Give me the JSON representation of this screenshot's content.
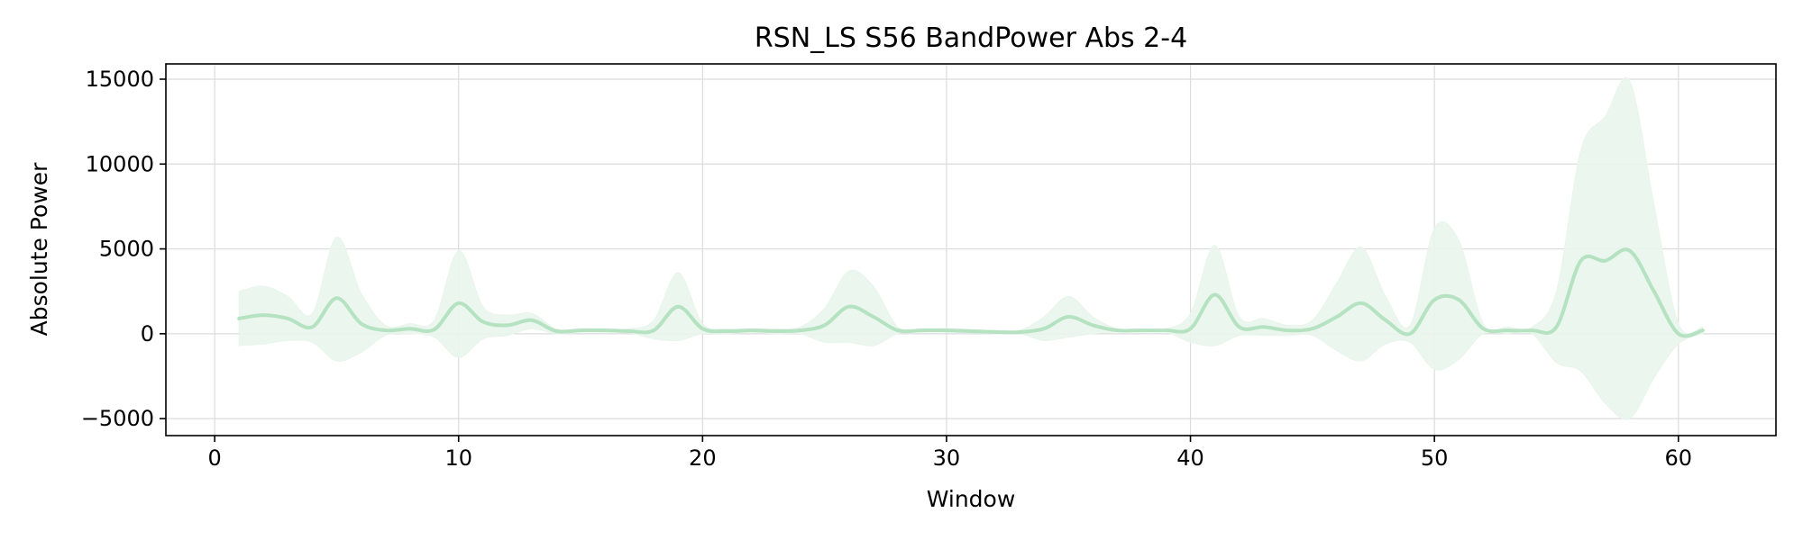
{
  "chart_data": {
    "type": "line",
    "title": "RSN_LS S56 BandPower Abs 2-4",
    "xlabel": "Window",
    "ylabel": "Absolute Power",
    "xlim": [
      -2,
      64
    ],
    "ylim": [
      -6000,
      15900
    ],
    "xticks": [
      0,
      10,
      20,
      30,
      40,
      50,
      60
    ],
    "xtick_labels": [
      "0",
      "10",
      "20",
      "30",
      "40",
      "50",
      "60"
    ],
    "yticks": [
      -5000,
      0,
      5000,
      10000,
      15000
    ],
    "ytick_labels": [
      "−5000",
      "0",
      "5000",
      "10000",
      "15000"
    ],
    "grid": true,
    "colors": {
      "line": "#b5e2c1",
      "band": "#e9f5ec"
    },
    "series": [
      {
        "x": [
          1,
          2,
          3,
          4,
          5,
          6,
          7,
          8,
          9,
          10,
          11,
          12,
          13,
          14,
          15,
          16,
          17,
          18,
          19,
          20,
          21,
          22,
          23,
          24,
          25,
          26,
          27,
          28,
          29,
          30,
          31,
          32,
          33,
          34,
          35,
          36,
          37,
          38,
          39,
          40,
          41,
          42,
          43,
          44,
          45,
          46,
          47,
          48,
          49,
          50,
          51,
          52,
          53,
          54,
          55,
          56,
          57,
          58,
          59,
          60,
          61
        ],
        "mean": [
          900,
          1100,
          900,
          400,
          2100,
          600,
          200,
          300,
          250,
          1800,
          700,
          500,
          800,
          150,
          200,
          200,
          150,
          200,
          1600,
          300,
          150,
          200,
          150,
          200,
          500,
          1600,
          1000,
          200,
          200,
          200,
          150,
          100,
          100,
          300,
          1000,
          500,
          200,
          200,
          200,
          300,
          2300,
          400,
          400,
          200,
          300,
          1000,
          1800,
          800,
          0,
          2000,
          2000,
          300,
          200,
          200,
          400,
          4300,
          4300,
          4900,
          2500,
          0,
          200
        ],
        "upper": [
          2500,
          2800,
          2200,
          1200,
          5700,
          2400,
          500,
          600,
          800,
          4900,
          1600,
          1100,
          1200,
          300,
          300,
          300,
          300,
          800,
          3600,
          600,
          300,
          300,
          300,
          400,
          1500,
          3700,
          2800,
          400,
          300,
          300,
          250,
          200,
          200,
          1000,
          2200,
          1000,
          300,
          300,
          300,
          1200,
          5200,
          1000,
          900,
          500,
          800,
          3000,
          5100,
          2200,
          500,
          6200,
          5500,
          600,
          400,
          400,
          2500,
          10800,
          12800,
          14900,
          7600,
          600,
          400
        ],
        "lower": [
          -700,
          -600,
          -400,
          -500,
          -1600,
          -1100,
          -100,
          0,
          -200,
          -1400,
          -300,
          -100,
          300,
          0,
          100,
          100,
          50,
          -300,
          -400,
          0,
          0,
          100,
          0,
          0,
          -500,
          -500,
          -700,
          0,
          100,
          100,
          50,
          0,
          0,
          -400,
          -200,
          0,
          100,
          100,
          100,
          -500,
          -700,
          -100,
          -100,
          -100,
          -100,
          -1000,
          -1600,
          -600,
          -500,
          -2100,
          -1500,
          0,
          0,
          0,
          -1700,
          -2200,
          -4100,
          -5000,
          -2600,
          -600,
          0
        ]
      }
    ]
  }
}
